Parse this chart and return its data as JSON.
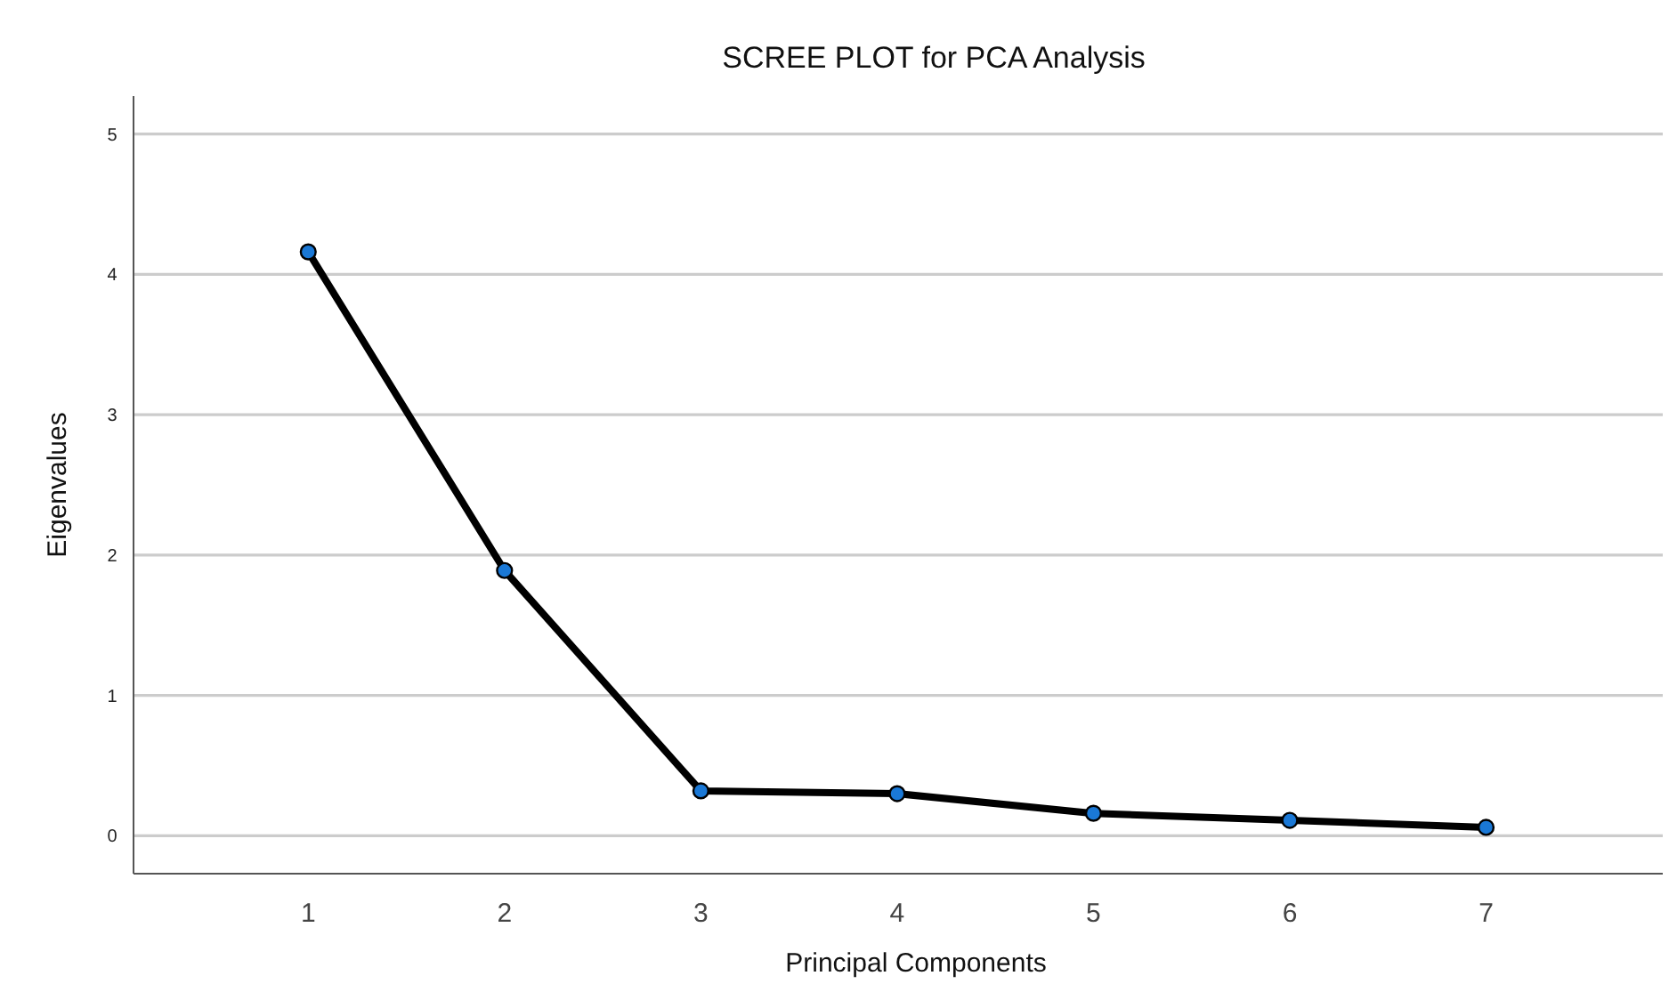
{
  "chart_data": {
    "type": "line",
    "title": "SCREE PLOT for PCA Analysis",
    "xlabel": "Principal Components",
    "ylabel": "Eigenvalues",
    "x": [
      1,
      2,
      3,
      4,
      5,
      6,
      7
    ],
    "series": [
      {
        "color": "#000000",
        "values": [
          4.16,
          1.89,
          0.32,
          0.3,
          0.16,
          0.11,
          0.06
        ]
      }
    ],
    "xlim": [
      0.11,
      7.9
    ],
    "xticks": [
      1,
      2,
      3,
      4,
      5,
      6,
      7
    ],
    "ylim": [
      -0.27,
      5.27
    ],
    "yticks": [
      0,
      1,
      2,
      3,
      4,
      5
    ],
    "grid": "y",
    "marker": "circle",
    "line_style": "solid"
  }
}
